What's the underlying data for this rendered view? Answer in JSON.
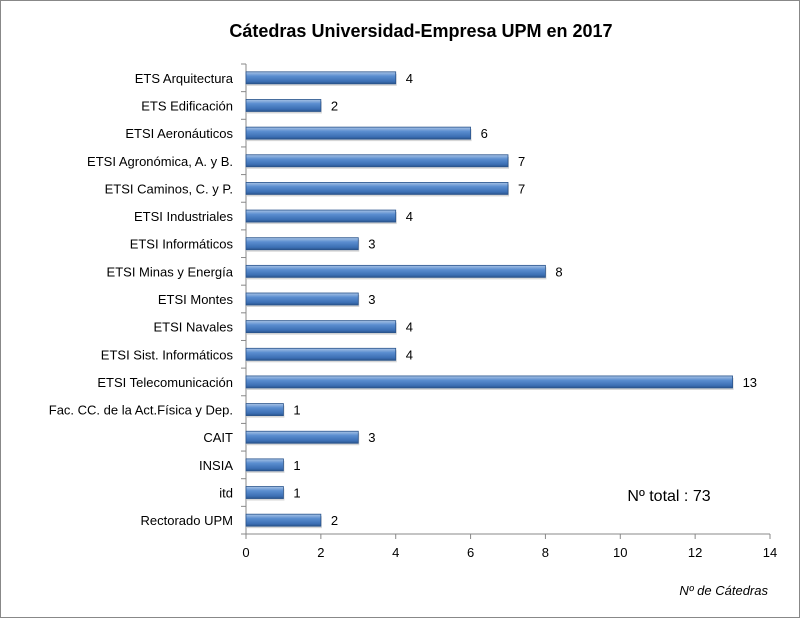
{
  "chart_data": {
    "type": "bar",
    "orientation": "horizontal",
    "title": "Cátedras Universidad-Empresa  UPM en 2017",
    "xlabel": "Nº de Cátedras",
    "ylabel": "",
    "xlim": [
      0,
      14
    ],
    "xticks": [
      0,
      2,
      4,
      6,
      8,
      10,
      12,
      14
    ],
    "grid": false,
    "annotation": "Nº total : 73",
    "bar_color": "#4f81bd",
    "categories": [
      "ETS Arquitectura",
      "ETS Edificación",
      "ETSI Aeronáuticos",
      "ETSI Agronómica, A. y B.",
      "ETSI Caminos, C. y P.",
      "ETSI Industriales",
      "ETSI Informáticos",
      "ETSI Minas y Energía",
      "ETSI Montes",
      "ETSI Navales",
      "ETSI Sist. Informáticos",
      "ETSI Telecomunicación",
      "Fac. CC. de la Act.Física y Dep.",
      "CAIT",
      "INSIA",
      "itd",
      "Rectorado UPM"
    ],
    "values": [
      4,
      2,
      6,
      7,
      7,
      4,
      3,
      8,
      3,
      4,
      4,
      13,
      1,
      3,
      1,
      1,
      2
    ]
  }
}
